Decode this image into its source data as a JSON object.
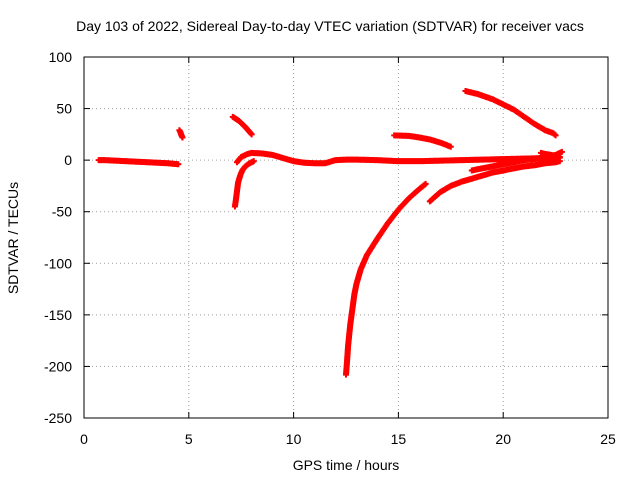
{
  "chart_data": {
    "type": "scatter",
    "title": "Day 103 of 2022, Sidereal Day-to-day VTEC variation (SDTVAR) for receiver vacs",
    "xlabel": "GPS time / hours",
    "ylabel": "SDTVAR / TECUs",
    "xlim": [
      0,
      25
    ],
    "ylim": [
      -250,
      100
    ],
    "xticks": [
      "0",
      "5",
      "10",
      "15",
      "20",
      "25"
    ],
    "yticks": [
      "100",
      "50",
      "0",
      "-50",
      "-100",
      "-150",
      "-200",
      "-250"
    ],
    "grid": true,
    "marker": "plus",
    "color": "#ff0000",
    "series": [
      {
        "points": [
          [
            0.7,
            0
          ],
          [
            1,
            0
          ],
          [
            1.5,
            -0.5
          ],
          [
            2,
            -1
          ],
          [
            2.5,
            -1.5
          ],
          [
            3,
            -2
          ],
          [
            3.5,
            -2.5
          ],
          [
            4,
            -3
          ],
          [
            4.5,
            -4
          ]
        ]
      },
      {
        "points": [
          [
            4.55,
            29
          ],
          [
            4.6,
            27
          ],
          [
            4.65,
            24
          ],
          [
            4.7,
            22
          ]
        ]
      },
      {
        "points": [
          [
            7.1,
            42
          ],
          [
            7.4,
            38
          ],
          [
            7.7,
            32
          ],
          [
            8.0,
            25
          ]
        ]
      },
      {
        "points": [
          [
            7.2,
            -45
          ],
          [
            7.25,
            -38
          ],
          [
            7.3,
            -30
          ],
          [
            7.35,
            -22
          ],
          [
            7.45,
            -15
          ],
          [
            7.55,
            -10
          ],
          [
            7.7,
            -6
          ],
          [
            7.9,
            -3
          ],
          [
            8.1,
            -1
          ]
        ]
      },
      {
        "points": [
          [
            7.3,
            -2
          ],
          [
            7.5,
            3
          ],
          [
            7.8,
            6
          ],
          [
            8,
            7
          ],
          [
            8.5,
            6.5
          ],
          [
            9,
            5
          ],
          [
            9.5,
            2
          ],
          [
            10,
            -1
          ],
          [
            10.5,
            -2.5
          ],
          [
            11,
            -3
          ],
          [
            11.5,
            -3
          ],
          [
            12,
            0
          ],
          [
            12.5,
            0.5
          ],
          [
            13,
            0.5
          ],
          [
            14,
            0
          ],
          [
            15,
            -1
          ],
          [
            16,
            -1
          ],
          [
            17,
            -0.5
          ],
          [
            18,
            0
          ],
          [
            19,
            0.5
          ],
          [
            20,
            1
          ],
          [
            21,
            1.5
          ],
          [
            22,
            2
          ],
          [
            22.7,
            2.5
          ]
        ]
      },
      {
        "points": [
          [
            12.5,
            -208
          ],
          [
            12.55,
            -195
          ],
          [
            12.6,
            -180
          ],
          [
            12.7,
            -160
          ],
          [
            12.8,
            -145
          ],
          [
            12.9,
            -130
          ],
          [
            13,
            -120
          ],
          [
            13.2,
            -106
          ],
          [
            13.5,
            -92
          ],
          [
            14,
            -76
          ],
          [
            14.5,
            -61
          ],
          [
            15,
            -48
          ],
          [
            15.5,
            -37
          ],
          [
            16,
            -28
          ],
          [
            16.3,
            -23
          ]
        ]
      },
      {
        "points": [
          [
            14.8,
            24
          ],
          [
            15.5,
            23.5
          ],
          [
            16,
            22
          ],
          [
            16.5,
            20
          ],
          [
            17,
            17
          ],
          [
            17.5,
            13
          ]
        ]
      },
      {
        "points": [
          [
            16.5,
            -40
          ],
          [
            17,
            -31
          ],
          [
            17.5,
            -25
          ],
          [
            18,
            -21
          ],
          [
            18.5,
            -18
          ],
          [
            19,
            -15
          ],
          [
            19.5,
            -12
          ],
          [
            20,
            -10
          ],
          [
            20.5,
            -8
          ],
          [
            21,
            -6
          ],
          [
            21.5,
            -5
          ],
          [
            22,
            -3
          ],
          [
            22.5,
            -2
          ],
          [
            22.7,
            -1
          ]
        ]
      },
      {
        "points": [
          [
            18.2,
            67
          ],
          [
            18.8,
            64
          ],
          [
            19.5,
            59
          ],
          [
            20,
            54
          ],
          [
            20.5,
            49
          ],
          [
            21,
            42
          ],
          [
            21.5,
            35
          ],
          [
            22,
            29
          ],
          [
            22.4,
            26
          ],
          [
            22.5,
            24
          ]
        ]
      },
      {
        "points": [
          [
            18.5,
            -10
          ],
          [
            19,
            -8
          ],
          [
            19.5,
            -6
          ],
          [
            20,
            -4
          ],
          [
            20.5,
            -2
          ],
          [
            21,
            0
          ],
          [
            21.5,
            1
          ],
          [
            22,
            3
          ],
          [
            22.5,
            5
          ],
          [
            22.8,
            8
          ]
        ]
      },
      {
        "points": [
          [
            21.8,
            7
          ],
          [
            22,
            6
          ],
          [
            22.3,
            5
          ],
          [
            22.5,
            4
          ],
          [
            22.7,
            3
          ]
        ]
      }
    ]
  }
}
